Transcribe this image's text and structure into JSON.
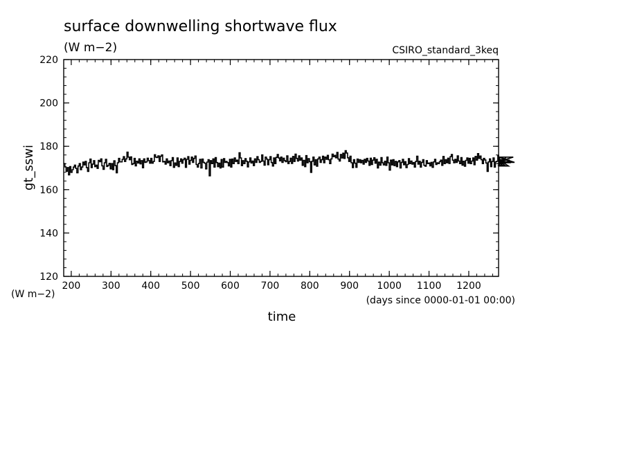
{
  "chart_data": {
    "type": "line",
    "title": "surface downwelling shortwave flux",
    "title_units": "(W m−2)",
    "dataset_label": "CSIRO_standard_3keq",
    "ylabel": "gt_sswi",
    "y_units": "(W m−2)",
    "xlabel": "time",
    "x_units": "(days since 0000-01-01 00:00)",
    "xlim": [
      181,
      1275
    ],
    "ylim": [
      120,
      220
    ],
    "x_ticks": [
      200,
      300,
      400,
      500,
      600,
      700,
      800,
      900,
      1000,
      1100,
      1200
    ],
    "y_ticks": [
      120,
      140,
      160,
      180,
      200,
      220
    ],
    "grid": false,
    "series": [
      {
        "color": "#000000",
        "x_start": 181,
        "x_step": 3,
        "values": [
          172.0,
          170.5,
          168.5,
          170.2,
          166.8,
          170.6,
          168.0,
          169.2,
          170.4,
          171.3,
          169.8,
          167.8,
          170.9,
          172.0,
          169.2,
          170.4,
          172.7,
          171.4,
          173.0,
          170.2,
          168.4,
          172.4,
          174.1,
          170.2,
          171.8,
          173.4,
          170.6,
          171.3,
          169.8,
          173.5,
          172.9,
          174.2,
          171.0,
          169.4,
          172.4,
          174.0,
          170.7,
          171.2,
          172.1,
          169.6,
          172.0,
          169.2,
          173.3,
          171.1,
          167.8,
          172.4,
          174.4,
          172.8,
          172.8,
          174.0,
          175.2,
          173.0,
          174.2,
          177.3,
          175.0,
          173.8,
          175.1,
          171.6,
          172.0,
          174.4,
          171.0,
          173.1,
          172.3,
          174.2,
          171.9,
          173.4,
          170.1,
          174.2,
          172.6,
          172.8,
          174.5,
          173.4,
          172.2,
          174.4,
          172.2,
          173.0,
          176.1,
          175.0,
          174.8,
          175.6,
          173.0,
          175.4,
          176.0,
          172.8,
          173.0,
          171.8,
          174.2,
          172.4,
          173.2,
          171.1,
          173.4,
          174.8,
          170.3,
          172.3,
          171.2,
          174.6,
          170.6,
          173.0,
          174.2,
          172.2,
          173.8,
          174.5,
          170.3,
          174.0,
          175.2,
          171.8,
          173.5,
          175.0,
          172.6,
          174.4,
          175.5,
          171.6,
          170.4,
          172.1,
          174.0,
          170.0,
          174.1,
          172.6,
          172.2,
          169.6,
          172.7,
          173.8,
          166.4,
          173.4,
          172.0,
          174.2,
          170.4,
          174.8,
          172.5,
          170.6,
          172.2,
          170.0,
          173.9,
          170.4,
          174.3,
          172.6,
          173.0,
          172.5,
          171.0,
          174.0,
          170.4,
          174.1,
          172.0,
          174.6,
          173.0,
          173.6,
          172.0,
          177.0,
          174.6,
          171.1,
          173.4,
          172.0,
          174.3,
          173.1,
          170.5,
          172.8,
          174.6,
          172.3,
          173.2,
          171.1,
          174.2,
          172.6,
          175.2,
          173.8,
          172.6,
          173.0,
          176.0,
          173.2,
          171.3,
          175.0,
          174.1,
          171.5,
          173.8,
          175.2,
          172.5,
          170.9,
          174.6,
          172.0,
          174.9,
          176.2,
          174.6,
          173.3,
          175.0,
          172.6,
          174.5,
          173.4,
          172.9,
          175.6,
          172.0,
          173.0,
          174.5,
          172.1,
          175.3,
          173.0,
          176.4,
          174.4,
          173.2,
          175.6,
          173.6,
          174.6,
          171.2,
          173.5,
          170.6,
          175.7,
          172.4,
          174.3,
          172.9,
          168.0,
          173.1,
          175.0,
          171.4,
          173.8,
          170.8,
          174.2,
          175.0,
          172.6,
          173.8,
          175.4,
          172.4,
          175.0,
          174.0,
          175.8,
          173.8,
          172.0,
          174.2,
          176.4,
          175.2,
          175.8,
          174.7,
          177.2,
          174.1,
          173.2,
          176.2,
          174.6,
          176.8,
          174.4,
          178.0,
          176.9,
          174.7,
          173.0,
          175.4,
          172.4,
          170.2,
          173.8,
          172.2,
          170.3,
          174.1,
          172.6,
          173.8,
          172.4,
          173.5,
          171.8,
          174.0,
          172.6,
          174.4,
          173.2,
          171.2,
          174.5,
          171.6,
          173.6,
          174.7,
          172.2,
          174.0,
          170.0,
          172.7,
          171.3,
          174.8,
          172.4,
          171.4,
          173.1,
          171.2,
          175.0,
          172.4,
          169.0,
          173.6,
          171.4,
          173.8,
          171.1,
          173.0,
          170.6,
          172.8,
          173.4,
          170.0,
          172.6,
          174.0,
          171.5,
          172.9,
          170.2,
          171.6,
          174.3,
          172.0,
          173.2,
          171.8,
          172.5,
          170.4,
          173.0,
          175.4,
          171.8,
          173.1,
          170.4,
          172.6,
          173.8,
          171.2,
          170.8,
          173.4,
          172.0,
          172.3,
          171.0,
          172.6,
          170.3,
          172.8,
          174.0,
          171.6,
          172.4,
          172.0,
          172.9,
          173.6,
          171.2,
          175.3,
          172.0,
          173.8,
          172.4,
          174.5,
          172.1,
          175.2,
          176.2,
          173.6,
          172.4,
          174.0,
          172.6,
          175.6,
          173.2,
          172.0,
          174.8,
          171.3,
          173.1,
          170.8,
          173.5,
          174.6,
          172.2,
          174.4,
          172.0,
          173.2,
          174.6,
          171.5,
          175.3,
          173.6,
          176.6,
          174.4,
          175.5,
          173.8,
          172.0,
          174.4,
          173.7,
          172.3,
          168.4,
          172.8,
          174.2,
          170.6,
          173.0,
          174.6,
          170.4,
          172.8,
          173.1,
          175.8,
          174.0,
          174.8,
          172.3,
          172.0,
          173.4,
          171.2,
          175.0,
          173.9,
          170.9,
          173.6,
          172.4,
          172.9,
          175.0,
          172.6
        ]
      }
    ]
  }
}
